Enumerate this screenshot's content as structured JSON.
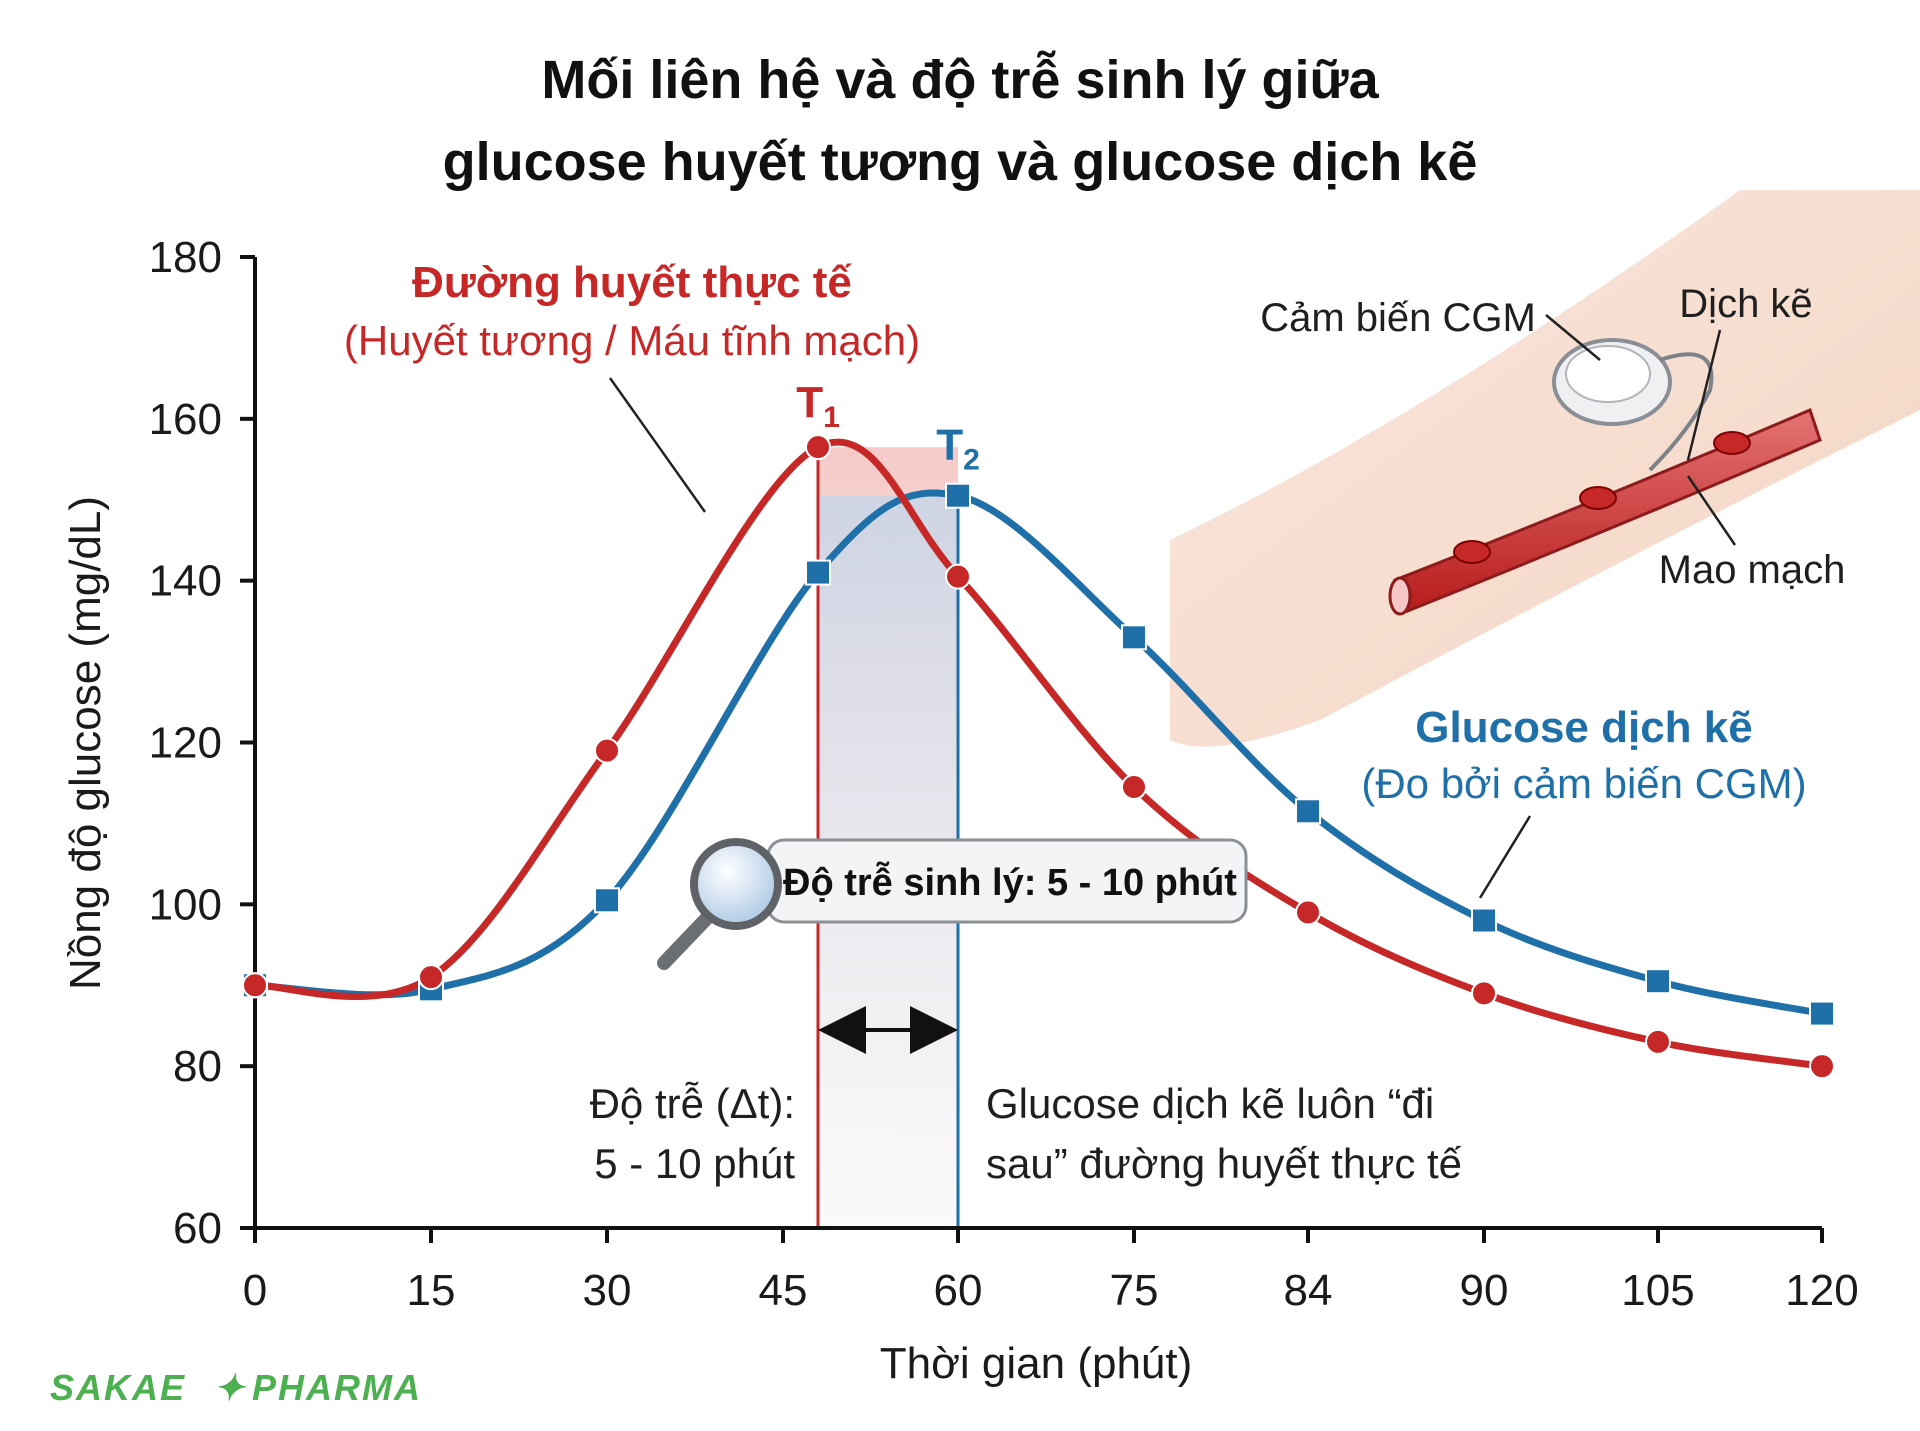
{
  "chart_data": {
    "type": "line",
    "title_line1": "Mối liên hệ và độ trễ sinh lý giữa",
    "title_line2": "glucose huyết tương và glucose dịch kẽ",
    "xlabel": "Thời gian (phút)",
    "ylabel": "Nồng độ glucose (mg/dL)",
    "ylim": [
      60,
      180
    ],
    "y_ticks": [
      "60",
      "80",
      "100",
      "120",
      "140",
      "160",
      "180"
    ],
    "x_ticks": [
      "0",
      "15",
      "30",
      "45",
      "60",
      "75",
      "84",
      "90",
      "105",
      "120"
    ],
    "series": [
      {
        "name": "Đường huyết thực tế",
        "subtitle": "(Huyết tương / Máu tĩnh mạch)",
        "color": "#c62828",
        "marker": "circle",
        "points": [
          {
            "x": 0,
            "y": 90
          },
          {
            "x": 15,
            "y": 91
          },
          {
            "x": 30,
            "y": 119
          },
          {
            "x": 48,
            "y": 156.5
          },
          {
            "x": 60,
            "y": 140.5
          },
          {
            "x": 75,
            "y": 114.5
          },
          {
            "x": 84,
            "y": 99
          },
          {
            "x": 90,
            "y": 89
          },
          {
            "x": 105,
            "y": 83
          },
          {
            "x": 120,
            "y": 80
          }
        ]
      },
      {
        "name": "Glucose dịch kẽ",
        "subtitle": "(Đo bởi cảm biến CGM)",
        "color": "#1f6fa8",
        "marker": "square",
        "points": [
          {
            "x": 0,
            "y": 90
          },
          {
            "x": 15,
            "y": 89.5
          },
          {
            "x": 30,
            "y": 100.5
          },
          {
            "x": 48,
            "y": 141
          },
          {
            "x": 60,
            "y": 150.5
          },
          {
            "x": 75,
            "y": 133
          },
          {
            "x": 84,
            "y": 111.5
          },
          {
            "x": 90,
            "y": 98
          },
          {
            "x": 105,
            "y": 90.5
          },
          {
            "x": 120,
            "y": 86.5
          }
        ]
      }
    ],
    "markers": {
      "t1_main": "T",
      "t1_sub": "1",
      "t2_main": "T",
      "t2_sub": "2"
    },
    "callout": "Độ trễ sinh lý: 5 - 10 phút",
    "delay_label_line1": "Độ trễ (Δt):",
    "delay_label_line2": "5 - 10 phút",
    "note_line1": "Glucose dịch kẽ luôn “đi",
    "note_line2": "sau” đường huyết thực tế",
    "illustration": {
      "sensor_label": "Cảm biến CGM",
      "fluid_label": "Dịch kẽ",
      "capillary_label": "Mao mạch"
    },
    "grid": false
  },
  "brand": {
    "left": "SAKAE",
    "right": "PHARMA",
    "color": "#4caf50"
  }
}
